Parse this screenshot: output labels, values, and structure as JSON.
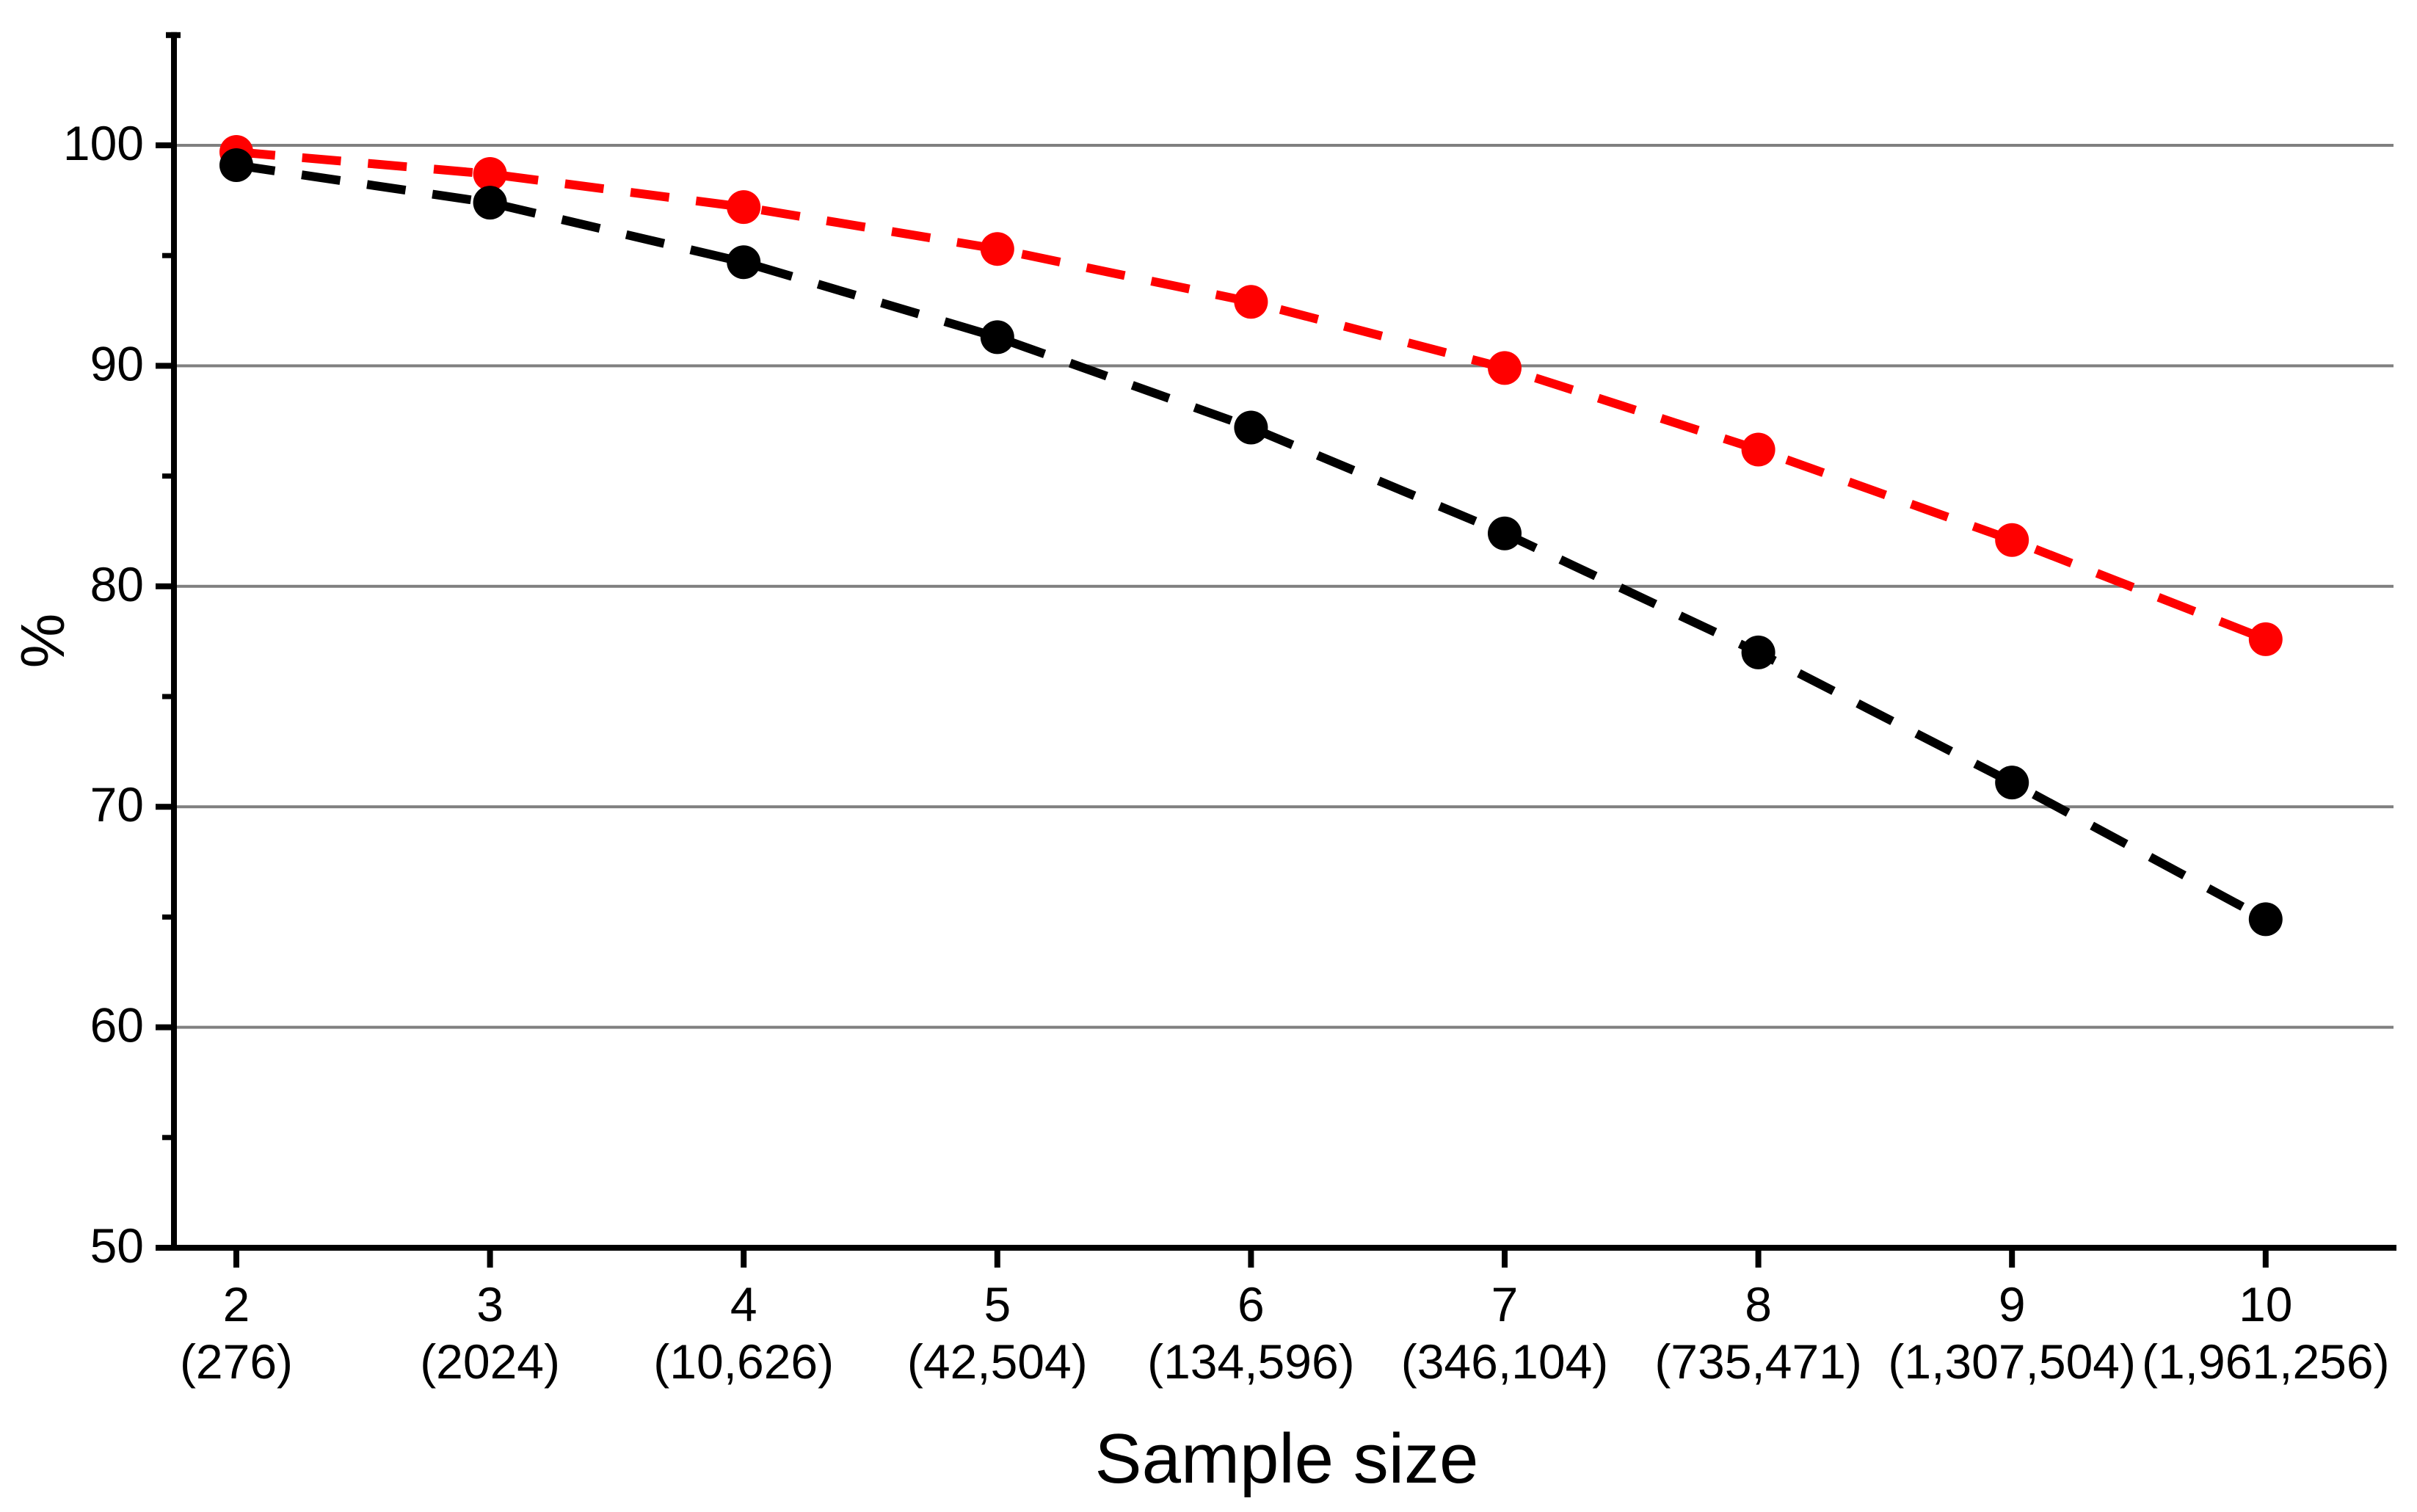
{
  "figure": {
    "background": "#FFFFFF"
  },
  "chart_data": {
    "type": "line",
    "title": "",
    "xlabel": "Sample size",
    "ylabel": "%",
    "categories": [
      "2",
      "3",
      "4",
      "5",
      "6",
      "7",
      "8",
      "9",
      "10"
    ],
    "category_sublabels": [
      "(276)",
      "(2024)",
      "(10,626)",
      "(42,504)",
      "(134,596)",
      "(346,104)",
      "(735,471)",
      "(1,307,504)",
      "(1,961,256)"
    ],
    "series": [
      {
        "name": "red-dashed-series",
        "color": "#FF0000",
        "line_style": "dashed",
        "marker": "circle",
        "values": [
          99.7,
          98.7,
          97.2,
          95.3,
          92.9,
          89.9,
          86.2,
          82.1,
          77.6
        ]
      },
      {
        "name": "black-dashed-series",
        "color": "#000000",
        "line_style": "dashed",
        "marker": "circle",
        "values": [
          99.1,
          97.4,
          94.7,
          91.3,
          87.2,
          82.4,
          77.0,
          71.1,
          64.9
        ]
      }
    ],
    "ylim": [
      50,
      105
    ],
    "yticks": [
      100,
      90,
      80,
      70,
      60,
      50
    ],
    "yticks_minor": [
      95,
      85,
      75,
      65,
      55
    ],
    "gridline_values": [
      100,
      90,
      80,
      70,
      60
    ],
    "grid_on": true,
    "grid_color": "#808080",
    "axis_color": "#000000",
    "legend_position": "none"
  }
}
